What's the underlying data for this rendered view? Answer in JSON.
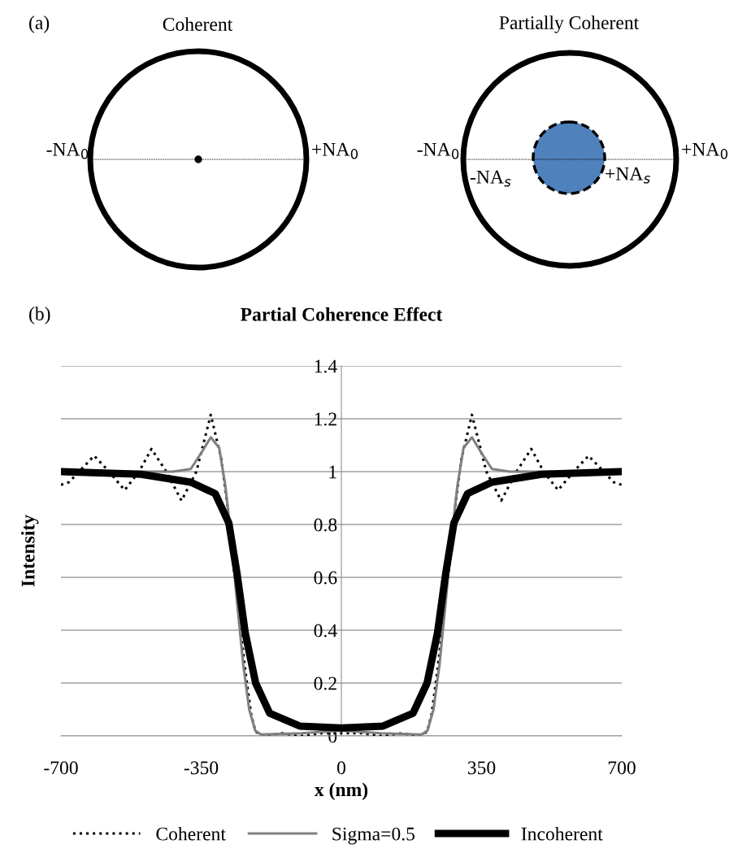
{
  "chart_data": [
    {
      "type": "other",
      "annotations": [
        "(a)",
        "Coherent",
        "Partially Coherent",
        "-NA$_{0}$",
        "+NA$_{0}$",
        "-NA$_{0}$",
        "+NA$_{0}$",
        "-NA$_{s}$",
        "+NA$_{s}$"
      ]
    },
    {
      "type": "line",
      "title": "Partial Coherence Effect",
      "xlabel": "x (nm)",
      "ylabel": "Intensity",
      "annotations": [
        "(b)"
      ],
      "xlim": [
        -700,
        700
      ],
      "ylim": [
        0,
        1.4
      ],
      "xticks": [
        -700,
        -350,
        0,
        350,
        700
      ],
      "yticks": [
        0,
        0.2,
        0.4,
        0.6,
        0.8,
        1,
        1.2,
        1.4
      ],
      "grid": "y",
      "legend": "bottom",
      "marker": "none",
      "series": [
        {
          "name": "Coherent",
          "color": "#000000",
          "line_style": "dotted",
          "x": [
            -700,
            -680,
            -617,
            -580,
            -541,
            -505,
            -474,
            -437,
            -399,
            -362,
            -326,
            -300,
            -285,
            -270,
            -255,
            -240,
            -225,
            -214,
            -190,
            -150,
            -100,
            -50,
            0,
            50,
            100,
            150,
            190,
            214,
            225,
            240,
            255,
            270,
            285,
            300,
            326,
            362,
            399,
            437,
            474,
            505,
            541,
            580,
            617,
            680,
            700
          ],
          "values": [
            0.95,
            0.96,
            1.06,
            1.0,
            0.93,
            1.0,
            1.086,
            1.0,
            0.89,
            1.0,
            1.215,
            1.05,
            0.88,
            0.65,
            0.45,
            0.25,
            0.08,
            0.015,
            0.0,
            0.01,
            0.0,
            0.01,
            0.01,
            0.01,
            0.0,
            0.01,
            0.0,
            0.015,
            0.08,
            0.25,
            0.45,
            0.65,
            0.88,
            1.05,
            1.215,
            1.0,
            0.89,
            1.0,
            1.086,
            1.0,
            0.93,
            1.0,
            1.06,
            0.96,
            0.95
          ]
        },
        {
          "name": "Sigma=0.5",
          "color": "#808080",
          "line_style": "solid",
          "x": [
            -700,
            -420,
            -376,
            -350,
            -326,
            -305,
            -290,
            -275,
            -260,
            -245,
            -230,
            -215,
            -200,
            -100,
            0,
            100,
            200,
            215,
            230,
            245,
            260,
            275,
            290,
            305,
            326,
            350,
            376,
            420,
            700
          ],
          "values": [
            1.0,
            1.0,
            1.01,
            1.07,
            1.13,
            1.09,
            0.95,
            0.75,
            0.5,
            0.27,
            0.1,
            0.02,
            0.005,
            0.01,
            0.02,
            0.01,
            0.005,
            0.02,
            0.1,
            0.27,
            0.5,
            0.75,
            0.95,
            1.09,
            1.13,
            1.07,
            1.01,
            1.0,
            1.0
          ]
        },
        {
          "name": "Incoherent",
          "color": "#000000",
          "line_style": "solid",
          "x": [
            -700,
            -500,
            -376,
            -315,
            -281,
            -260,
            -240,
            -214,
            -179,
            -104,
            0,
            104,
            179,
            214,
            240,
            260,
            281,
            315,
            376,
            500,
            700
          ],
          "values": [
            1.0,
            0.99,
            0.96,
            0.917,
            0.806,
            0.61,
            0.39,
            0.2,
            0.086,
            0.037,
            0.03,
            0.037,
            0.086,
            0.2,
            0.39,
            0.61,
            0.806,
            0.917,
            0.96,
            0.99,
            1.0
          ]
        }
      ]
    }
  ]
}
